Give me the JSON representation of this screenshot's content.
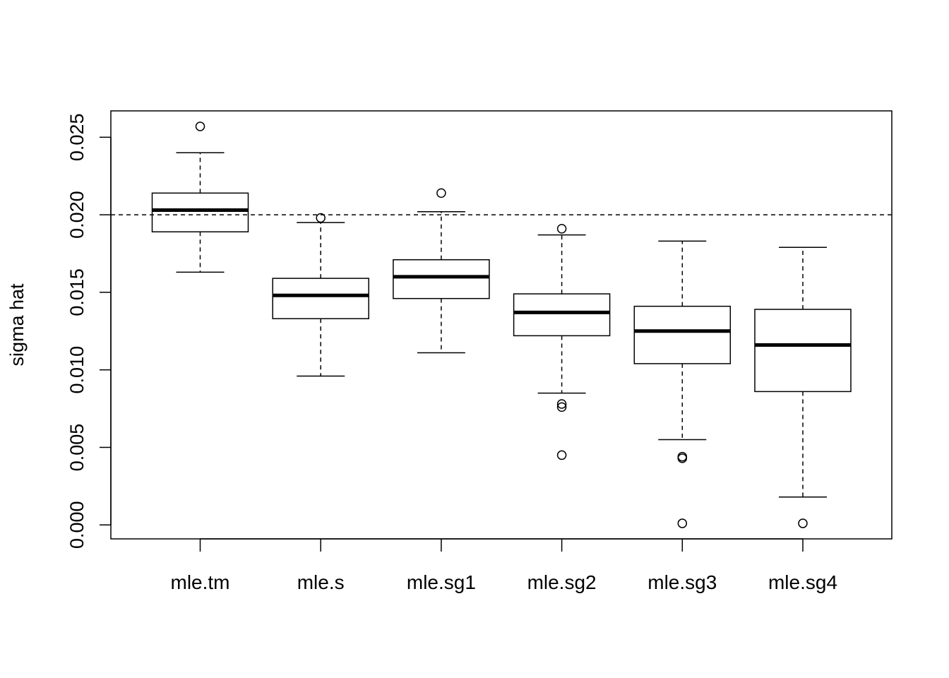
{
  "chart_data": {
    "type": "boxplot",
    "title": "",
    "xlabel": "",
    "ylabel": "sigma hat",
    "ylim": [
      -0.0009,
      0.0267
    ],
    "yticks": [
      "0.000",
      "0.005",
      "0.010",
      "0.015",
      "0.020",
      "0.025"
    ],
    "ytick_values": [
      0.0,
      0.005,
      0.01,
      0.015,
      0.02,
      0.025
    ],
    "reference_line": {
      "y": 0.02,
      "style": "dashed"
    },
    "grid": false,
    "legend": "none",
    "categories": [
      "mle.tm",
      "mle.s",
      "mle.sg1",
      "mle.sg2",
      "mle.sg3",
      "mle.sg4"
    ],
    "boxes": [
      {
        "label": "mle.tm",
        "whisker_low": 0.0163,
        "q1": 0.0189,
        "median": 0.0203,
        "q3": 0.0214,
        "whisker_high": 0.024,
        "outliers": [
          0.0257
        ]
      },
      {
        "label": "mle.s",
        "whisker_low": 0.0096,
        "q1": 0.0133,
        "median": 0.0148,
        "q3": 0.0159,
        "whisker_high": 0.0195,
        "outliers": [
          0.0198
        ]
      },
      {
        "label": "mle.sg1",
        "whisker_low": 0.0111,
        "q1": 0.0146,
        "median": 0.016,
        "q3": 0.0171,
        "whisker_high": 0.0202,
        "outliers": [
          0.0214
        ]
      },
      {
        "label": "mle.sg2",
        "whisker_low": 0.0085,
        "q1": 0.0122,
        "median": 0.0137,
        "q3": 0.0149,
        "whisker_high": 0.0187,
        "outliers": [
          0.0191,
          0.0078,
          0.0076,
          0.0045
        ]
      },
      {
        "label": "mle.sg3",
        "whisker_low": 0.0055,
        "q1": 0.0104,
        "median": 0.0125,
        "q3": 0.0141,
        "whisker_high": 0.0183,
        "outliers": [
          0.0044,
          0.0043,
          0.0001
        ]
      },
      {
        "label": "mle.sg4",
        "whisker_low": 0.0018,
        "q1": 0.0086,
        "median": 0.0116,
        "q3": 0.0139,
        "whisker_high": 0.0179,
        "outliers": [
          0.0001
        ]
      }
    ]
  }
}
